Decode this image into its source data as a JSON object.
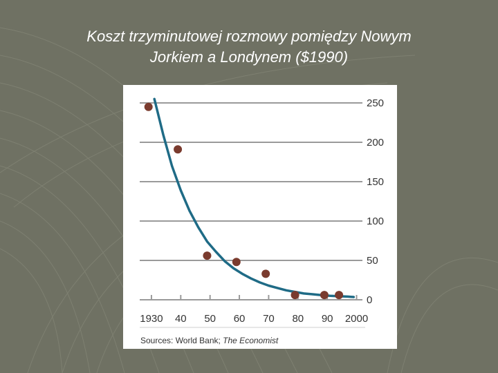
{
  "slide": {
    "title_line1": "Koszt trzyminutowej rozmowy pomiędzy Nowym",
    "title_line2": "Jorkiem a Londynem ($1990)"
  },
  "chart_data": {
    "type": "scatter",
    "title": "",
    "xlabel": "",
    "ylabel": "",
    "x_tick_labels": [
      "1930",
      "40",
      "50",
      "60",
      "70",
      "80",
      "90",
      "2000"
    ],
    "x_ticks": [
      1930,
      1940,
      1950,
      1960,
      1970,
      1980,
      1990,
      2000
    ],
    "y_ticks": [
      0,
      50,
      100,
      150,
      200,
      250
    ],
    "xlim": [
      1926,
      2002
    ],
    "ylim": [
      0,
      250
    ],
    "y_axis_side": "right",
    "grid": true,
    "series": [
      {
        "kind": "points",
        "color": "#7a3b2e",
        "x": [
          1929,
          1939,
          1949,
          1959,
          1969,
          1979,
          1989,
          1994
        ],
        "y": [
          245,
          191,
          56,
          48,
          33,
          6,
          6,
          6
        ]
      },
      {
        "kind": "trend-line",
        "color": "#1f6b86",
        "x": [
          1931,
          1934,
          1937,
          1940,
          1943,
          1946,
          1949,
          1952,
          1955,
          1958,
          1961,
          1964,
          1967,
          1970,
          1973,
          1976,
          1979,
          1982,
          1985,
          1988,
          1991,
          1994,
          1997,
          1999
        ],
        "y": [
          255,
          210,
          170,
          139,
          113,
          92,
          74,
          61,
          49,
          40,
          33,
          27,
          22,
          18,
          15,
          12,
          10,
          8,
          7,
          6,
          5,
          4.5,
          4,
          3.5
        ]
      }
    ],
    "source": "Sources: World Bank; ",
    "source_italic": "The Economist"
  },
  "colors": {
    "background": "#6f7163",
    "panel": "#ffffff",
    "gridline": "#9a9a9a",
    "points": "#7a3b2e",
    "curve": "#1f6b86"
  }
}
